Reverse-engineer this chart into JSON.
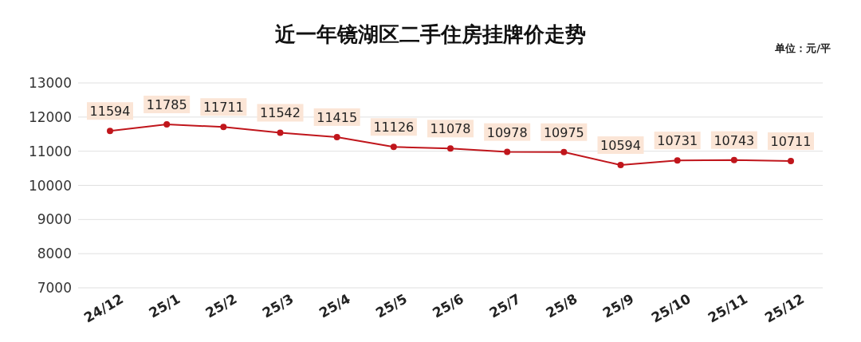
{
  "chart_data": {
    "type": "line",
    "title": "近一年镜湖区二手住房挂牌价走势",
    "annotations": [
      "单位：元/平"
    ],
    "categories": [
      "24/12",
      "25/1",
      "25/2",
      "25/3",
      "25/4",
      "25/5",
      "25/6",
      "25/7",
      "25/8",
      "25/9",
      "25/10",
      "25/11",
      "25/12"
    ],
    "series": [
      {
        "color": "#c0161c",
        "values": [
          11594,
          11785,
          11711,
          11542,
          11415,
          11126,
          11078,
          10978,
          10975,
          10594,
          10731,
          10743,
          10711
        ]
      }
    ],
    "ylim": [
      7000,
      13000
    ],
    "yticks": [
      7000,
      8000,
      9000,
      10000,
      11000,
      12000,
      13000
    ],
    "grid": "y",
    "marker": "circle",
    "line_style": "solid",
    "data_labels": true
  }
}
